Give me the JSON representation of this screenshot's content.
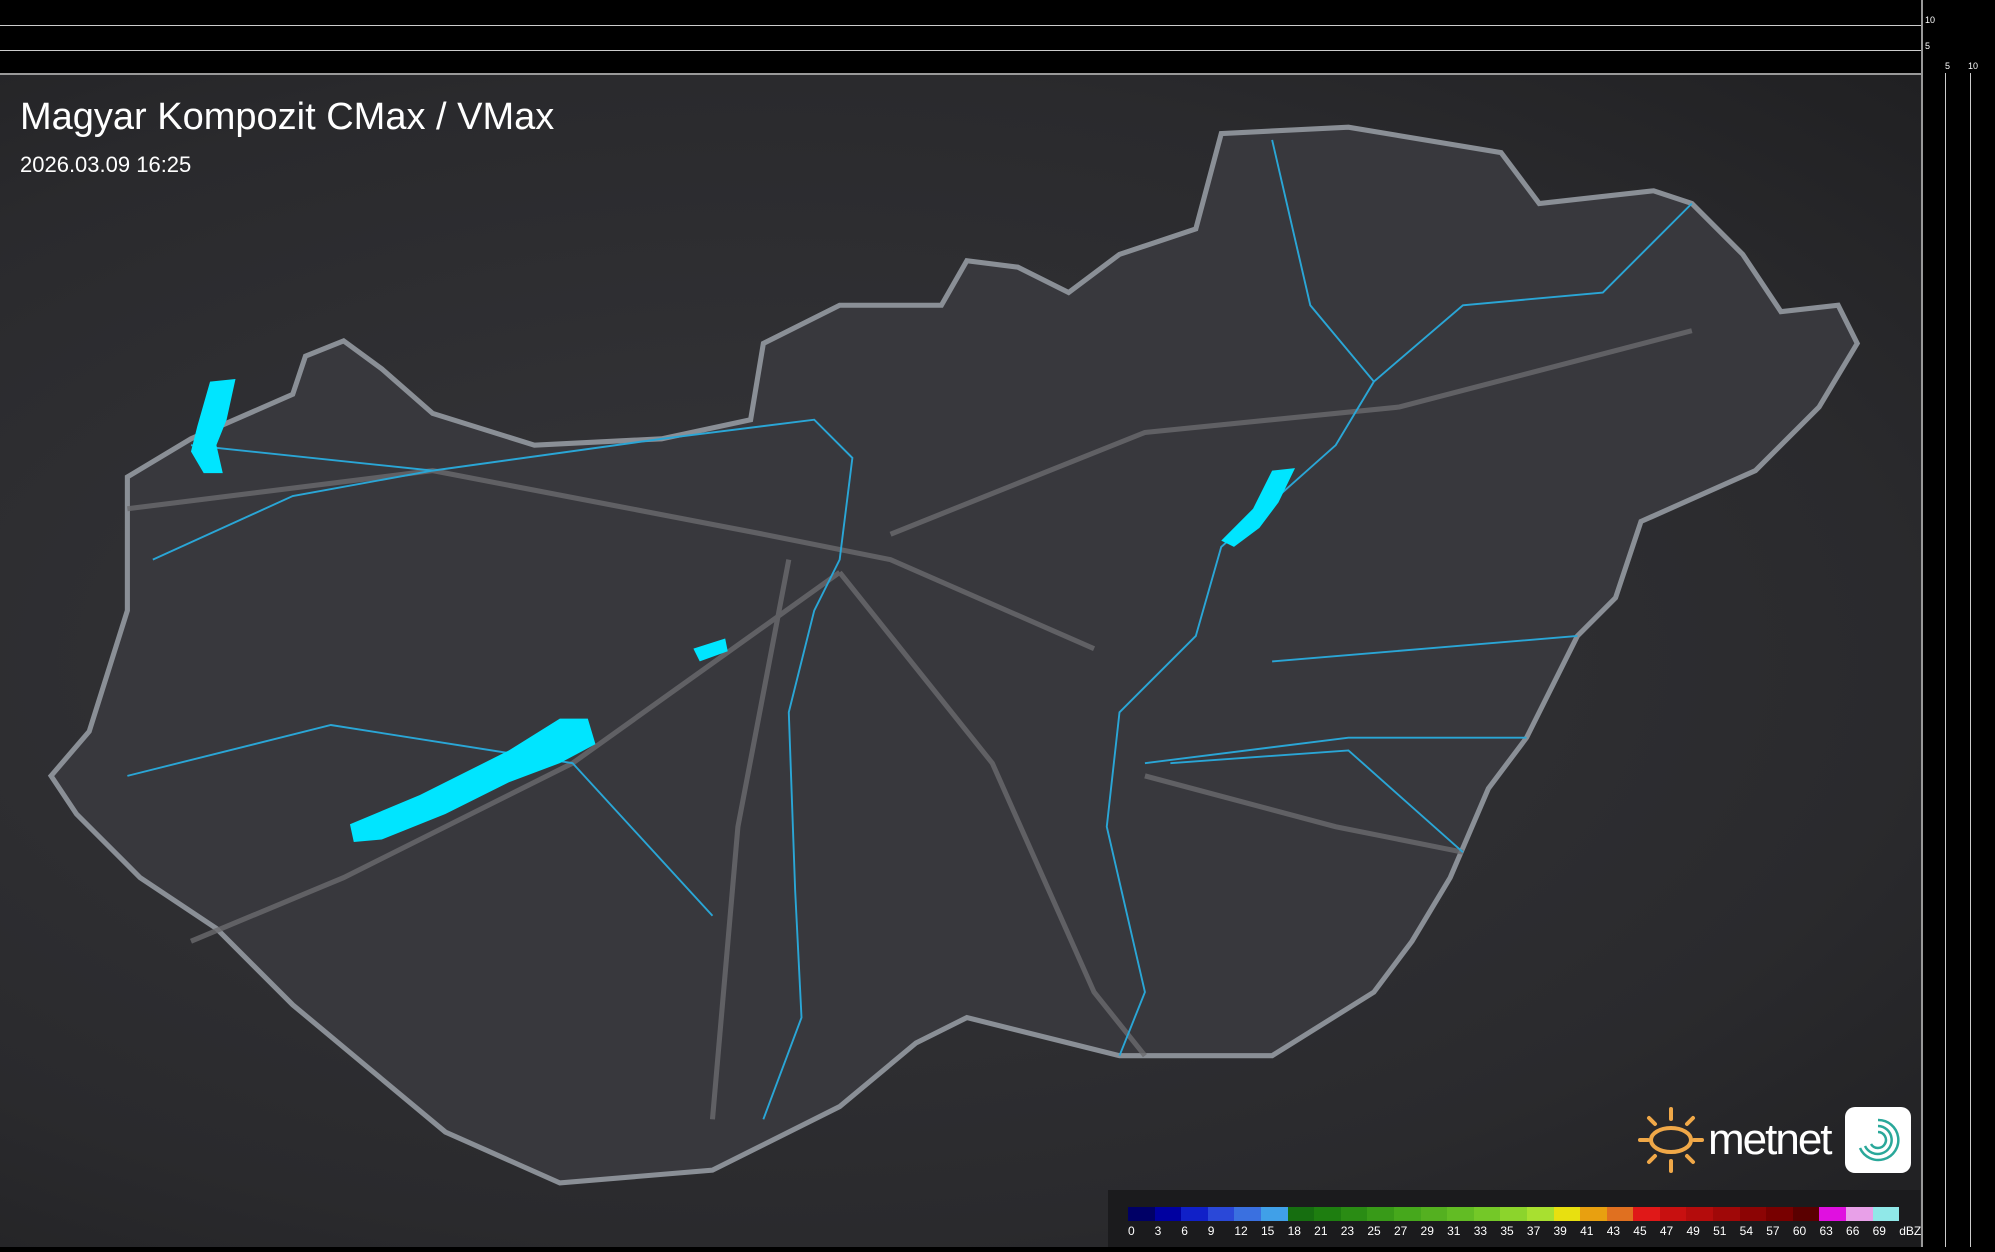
{
  "title": "Magyar Kompozit CMax / VMax",
  "timestamp": "2026.03.09 16:25",
  "top_axis_ticks": [
    "10",
    "5"
  ],
  "right_axis_ticks": [
    "5",
    "10"
  ],
  "legend": {
    "unit": "dBZ",
    "labels": [
      "0",
      "3",
      "6",
      "9",
      "12",
      "15",
      "18",
      "21",
      "23",
      "25",
      "27",
      "29",
      "31",
      "33",
      "35",
      "37",
      "39",
      "41",
      "43",
      "45",
      "47",
      "49",
      "51",
      "54",
      "57",
      "60",
      "63",
      "66",
      "69"
    ],
    "colors": [
      "#000066",
      "#0000a0",
      "#1020c8",
      "#2a48d8",
      "#3a70e0",
      "#40a0e8",
      "#166e10",
      "#1e7e10",
      "#2a8c14",
      "#389a18",
      "#46a81c",
      "#54b020",
      "#62bc24",
      "#74c828",
      "#8cd42c",
      "#a8e030",
      "#e8e010",
      "#e8a010",
      "#e07020",
      "#e01818",
      "#c81010",
      "#b40c0c",
      "#a00808",
      "#8c0404",
      "#780000",
      "#5a0000",
      "#e010e0",
      "#e8a0e8",
      "#90e8e8"
    ]
  },
  "logo": {
    "text": "metnet"
  },
  "colors": {
    "lakes": "#00e5ff",
    "rivers": "#2aa6d6",
    "border": "#8a8f96",
    "roads": "#6a6a6e"
  }
}
